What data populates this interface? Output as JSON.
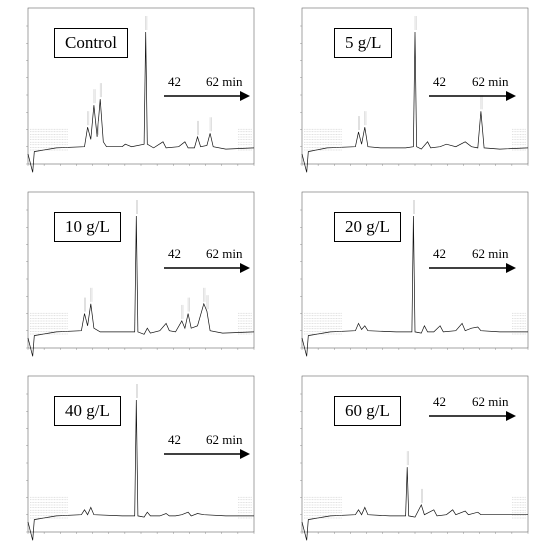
{
  "chart_data": [
    {
      "type": "line",
      "title": "Control",
      "arrow": {
        "start": "42",
        "end": "62 min"
      },
      "series": [
        {
          "values": [
            [
              0,
              0.0
            ],
            [
              1.5,
              -0.15
            ],
            [
              2,
              0.02
            ],
            [
              9,
              0.05
            ],
            [
              18,
              0.06
            ],
            [
              19,
              0.22
            ],
            [
              20,
              0.12
            ],
            [
              21,
              0.4
            ],
            [
              22,
              0.14
            ],
            [
              23,
              0.45
            ],
            [
              24,
              0.1
            ],
            [
              25,
              0.06
            ],
            [
              30,
              0.06
            ],
            [
              31,
              0.08
            ],
            [
              33,
              0.06
            ],
            [
              37,
              0.08
            ],
            [
              37.5,
              1.0
            ],
            [
              38,
              0.08
            ],
            [
              40,
              0.05
            ],
            [
              43,
              0.1
            ],
            [
              44,
              0.05
            ],
            [
              48,
              0.06
            ],
            [
              50,
              0.1
            ],
            [
              51,
              0.05
            ],
            [
              53,
              0.05
            ],
            [
              54,
              0.14
            ],
            [
              55,
              0.06
            ],
            [
              57,
              0.07
            ],
            [
              58,
              0.17
            ],
            [
              59,
              0.06
            ],
            [
              63,
              0.04
            ],
            [
              72,
              0.05
            ]
          ]
        }
      ]
    },
    {
      "type": "line",
      "title": "5 g/L",
      "arrow": {
        "start": "42",
        "end": "62 min"
      },
      "series": [
        {
          "values": [
            [
              0,
              0.0
            ],
            [
              1.5,
              -0.15
            ],
            [
              2,
              0.02
            ],
            [
              8,
              0.05
            ],
            [
              17,
              0.06
            ],
            [
              18,
              0.18
            ],
            [
              19,
              0.08
            ],
            [
              20,
              0.22
            ],
            [
              21,
              0.06
            ],
            [
              25,
              0.05
            ],
            [
              30,
              0.05
            ],
            [
              33,
              0.05
            ],
            [
              35.5,
              0.06
            ],
            [
              36,
              1.0
            ],
            [
              36.5,
              0.06
            ],
            [
              38,
              0.04
            ],
            [
              40,
              0.1
            ],
            [
              41,
              0.05
            ],
            [
              44,
              0.06
            ],
            [
              46,
              0.08
            ],
            [
              49,
              0.06
            ],
            [
              52,
              0.1
            ],
            [
              54,
              0.06
            ],
            [
              56,
              0.05
            ],
            [
              57,
              0.35
            ],
            [
              58,
              0.05
            ],
            [
              63,
              0.04
            ],
            [
              72,
              0.05
            ]
          ]
        }
      ]
    },
    {
      "type": "line",
      "title": "10 g/L",
      "arrow": {
        "start": "42",
        "end": "62 min"
      },
      "series": [
        {
          "values": [
            [
              0,
              0.0
            ],
            [
              1.5,
              -0.15
            ],
            [
              2,
              0.02
            ],
            [
              9,
              0.05
            ],
            [
              17,
              0.06
            ],
            [
              18,
              0.2
            ],
            [
              19,
              0.1
            ],
            [
              20,
              0.28
            ],
            [
              21,
              0.08
            ],
            [
              23,
              0.05
            ],
            [
              30,
              0.05
            ],
            [
              34,
              0.05
            ],
            [
              34.5,
              1.0
            ],
            [
              35,
              0.05
            ],
            [
              37,
              0.03
            ],
            [
              38,
              0.08
            ],
            [
              39,
              0.04
            ],
            [
              42,
              0.06
            ],
            [
              44,
              0.12
            ],
            [
              45,
              0.06
            ],
            [
              47,
              0.05
            ],
            [
              49,
              0.14
            ],
            [
              50,
              0.08
            ],
            [
              51,
              0.2
            ],
            [
              52,
              0.08
            ],
            [
              54,
              0.1
            ],
            [
              56,
              0.28
            ],
            [
              57,
              0.22
            ],
            [
              58,
              0.06
            ],
            [
              62,
              0.04
            ],
            [
              72,
              0.05
            ]
          ]
        }
      ]
    },
    {
      "type": "line",
      "title": "20 g/L",
      "arrow": {
        "start": "42",
        "end": "62 min"
      },
      "series": [
        {
          "values": [
            [
              0,
              0.0
            ],
            [
              1.5,
              -0.15
            ],
            [
              2,
              0.02
            ],
            [
              9,
              0.05
            ],
            [
              17,
              0.06
            ],
            [
              18,
              0.12
            ],
            [
              19,
              0.07
            ],
            [
              20,
              0.1
            ],
            [
              21,
              0.06
            ],
            [
              30,
              0.05
            ],
            [
              35,
              0.05
            ],
            [
              35.5,
              1.0
            ],
            [
              36,
              0.05
            ],
            [
              38,
              0.04
            ],
            [
              39,
              0.1
            ],
            [
              40,
              0.05
            ],
            [
              42,
              0.05
            ],
            [
              44,
              0.1
            ],
            [
              45,
              0.05
            ],
            [
              49,
              0.06
            ],
            [
              51,
              0.12
            ],
            [
              52,
              0.06
            ],
            [
              54,
              0.08
            ],
            [
              56,
              0.09
            ],
            [
              57,
              0.06
            ],
            [
              63,
              0.05
            ],
            [
              72,
              0.05
            ]
          ]
        }
      ]
    },
    {
      "type": "line",
      "title": "40 g/L",
      "arrow": {
        "start": "42",
        "end": "62 min"
      },
      "series": [
        {
          "values": [
            [
              0,
              0.0
            ],
            [
              1.5,
              -0.15
            ],
            [
              2,
              0.02
            ],
            [
              9,
              0.05
            ],
            [
              17,
              0.06
            ],
            [
              18,
              0.1
            ],
            [
              19,
              0.06
            ],
            [
              20,
              0.12
            ],
            [
              21,
              0.06
            ],
            [
              30,
              0.05
            ],
            [
              34,
              0.05
            ],
            [
              34.5,
              1.0
            ],
            [
              35,
              0.05
            ],
            [
              37,
              0.04
            ],
            [
              38,
              0.08
            ],
            [
              39,
              0.05
            ],
            [
              42,
              0.05
            ],
            [
              44,
              0.07
            ],
            [
              45,
              0.05
            ],
            [
              47,
              0.05
            ],
            [
              49,
              0.06
            ],
            [
              51,
              0.08
            ],
            [
              52,
              0.05
            ],
            [
              54,
              0.07
            ],
            [
              56,
              0.06
            ],
            [
              63,
              0.05
            ],
            [
              72,
              0.05
            ]
          ]
        }
      ]
    },
    {
      "type": "line",
      "title": "60 g/L",
      "arrow": {
        "start": "42",
        "end": "62 min"
      },
      "series": [
        {
          "values": [
            [
              0,
              0.0
            ],
            [
              1.5,
              -0.15
            ],
            [
              2,
              0.02
            ],
            [
              9,
              0.05
            ],
            [
              17,
              0.06
            ],
            [
              18,
              0.1
            ],
            [
              19,
              0.06
            ],
            [
              20,
              0.12
            ],
            [
              21,
              0.06
            ],
            [
              28,
              0.05
            ],
            [
              33,
              0.05
            ],
            [
              33.5,
              0.45
            ],
            [
              34,
              0.05
            ],
            [
              36,
              0.04
            ],
            [
              38,
              0.14
            ],
            [
              39,
              0.06
            ],
            [
              42,
              0.1
            ],
            [
              43,
              0.05
            ],
            [
              46,
              0.06
            ],
            [
              48,
              0.1
            ],
            [
              49,
              0.06
            ],
            [
              52,
              0.09
            ],
            [
              53,
              0.06
            ],
            [
              56,
              0.08
            ],
            [
              57,
              0.06
            ],
            [
              63,
              0.06
            ],
            [
              72,
              0.06
            ]
          ]
        }
      ]
    }
  ]
}
